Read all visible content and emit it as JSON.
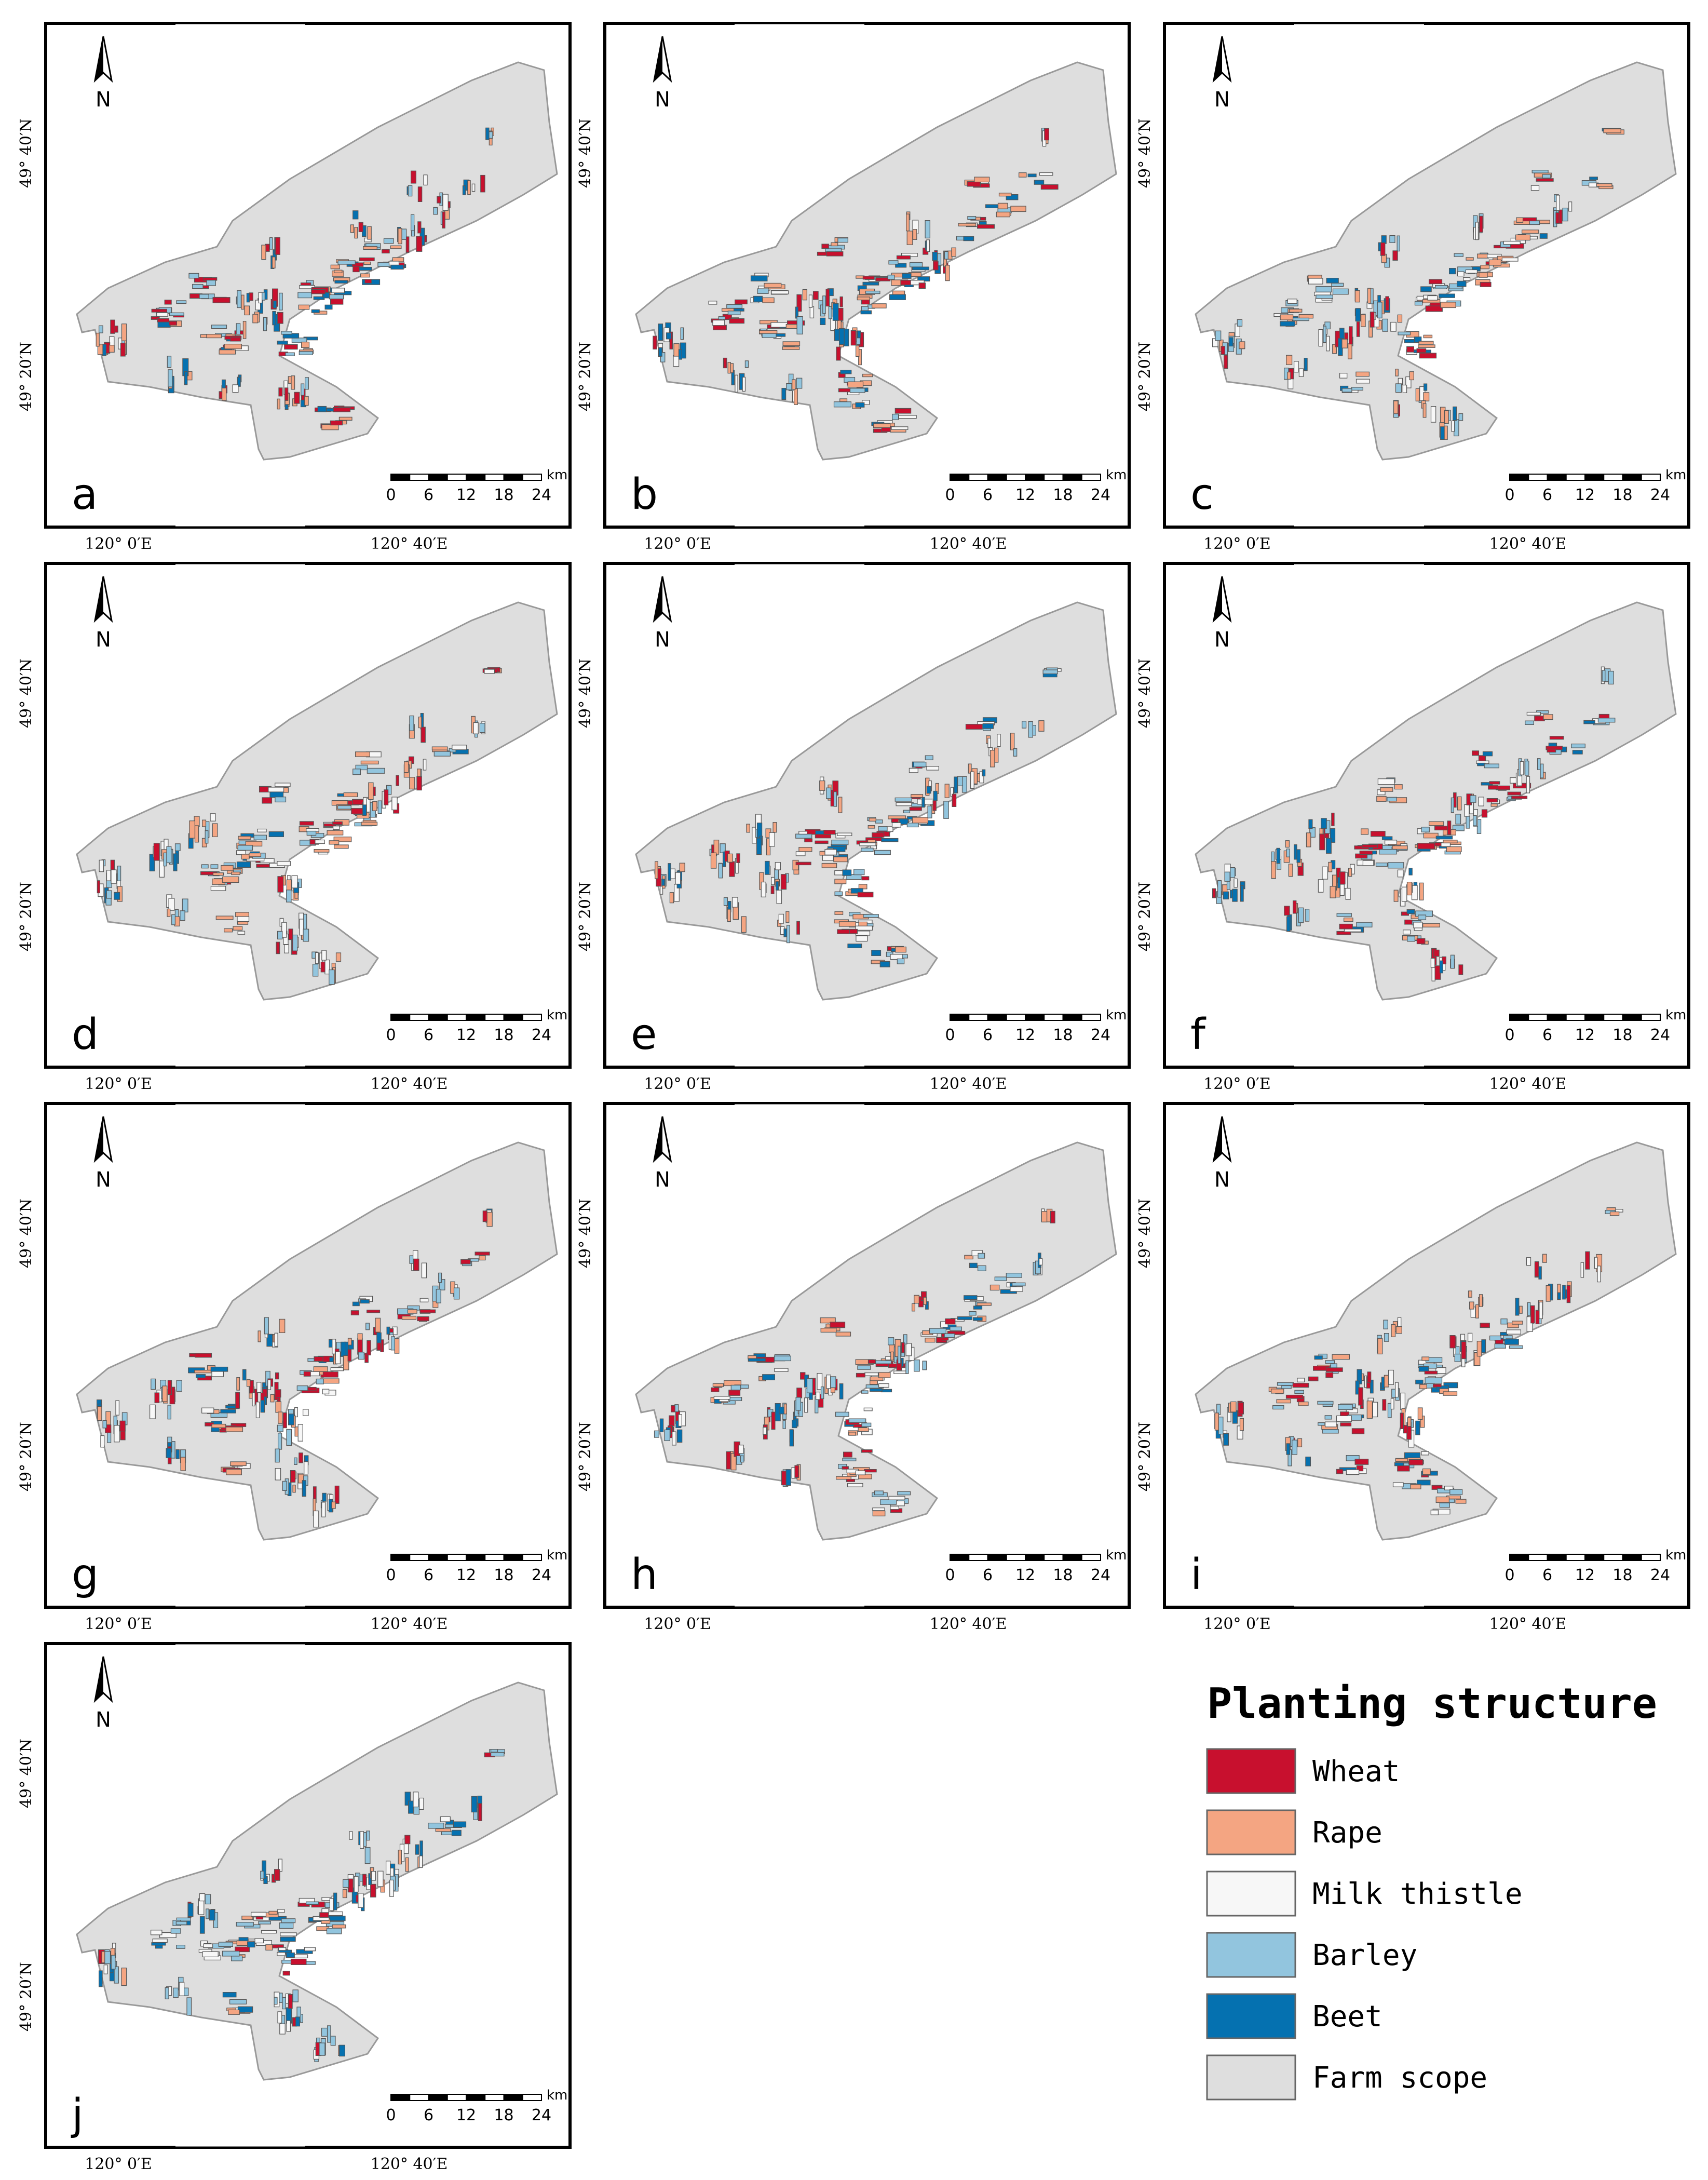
{
  "figure": {
    "north_label": "N",
    "scale_unit": "km",
    "scale_ticks": [
      "0",
      "6",
      "12",
      "18",
      "24"
    ],
    "lat_labels": [
      "49° 40′N",
      "49° 20′N"
    ],
    "lon_labels": [
      "120° 0′E",
      "120° 40′E"
    ],
    "panels": [
      {
        "label": "a",
        "mix": {
          "wheat": 0.3,
          "rape": 0.25,
          "thistle": 0.1,
          "barley": 0.2,
          "beet": 0.15
        }
      },
      {
        "label": "b",
        "mix": {
          "wheat": 0.2,
          "rape": 0.3,
          "thistle": 0.15,
          "barley": 0.2,
          "beet": 0.15
        }
      },
      {
        "label": "c",
        "mix": {
          "wheat": 0.12,
          "rape": 0.3,
          "thistle": 0.2,
          "barley": 0.25,
          "beet": 0.13
        }
      },
      {
        "label": "d",
        "mix": {
          "wheat": 0.15,
          "rape": 0.25,
          "thistle": 0.25,
          "barley": 0.25,
          "beet": 0.1
        }
      },
      {
        "label": "e",
        "mix": {
          "wheat": 0.18,
          "rape": 0.27,
          "thistle": 0.2,
          "barley": 0.22,
          "beet": 0.13
        }
      },
      {
        "label": "f",
        "mix": {
          "wheat": 0.18,
          "rape": 0.25,
          "thistle": 0.2,
          "barley": 0.22,
          "beet": 0.15
        }
      },
      {
        "label": "g",
        "mix": {
          "wheat": 0.22,
          "rape": 0.2,
          "thistle": 0.18,
          "barley": 0.25,
          "beet": 0.15
        }
      },
      {
        "label": "h",
        "mix": {
          "wheat": 0.15,
          "rape": 0.22,
          "thistle": 0.23,
          "barley": 0.25,
          "beet": 0.15
        }
      },
      {
        "label": "i",
        "mix": {
          "wheat": 0.17,
          "rape": 0.25,
          "thistle": 0.2,
          "barley": 0.25,
          "beet": 0.13
        }
      },
      {
        "label": "j",
        "mix": {
          "wheat": 0.12,
          "rape": 0.15,
          "thistle": 0.23,
          "barley": 0.3,
          "beet": 0.2
        }
      }
    ]
  },
  "legend": {
    "title": "Planting structure",
    "items": [
      {
        "key": "wheat",
        "label": "Wheat",
        "color": "#c8102e"
      },
      {
        "key": "rape",
        "label": "Rape",
        "color": "#f4a582"
      },
      {
        "key": "thistle",
        "label": "Milk thistle",
        "color": "#f7f7f7"
      },
      {
        "key": "barley",
        "label": "Barley",
        "color": "#92c5de"
      },
      {
        "key": "beet",
        "label": "Beet",
        "color": "#0571b0"
      },
      {
        "key": "farm",
        "label": "Farm scope",
        "color": "#dedede"
      }
    ]
  }
}
